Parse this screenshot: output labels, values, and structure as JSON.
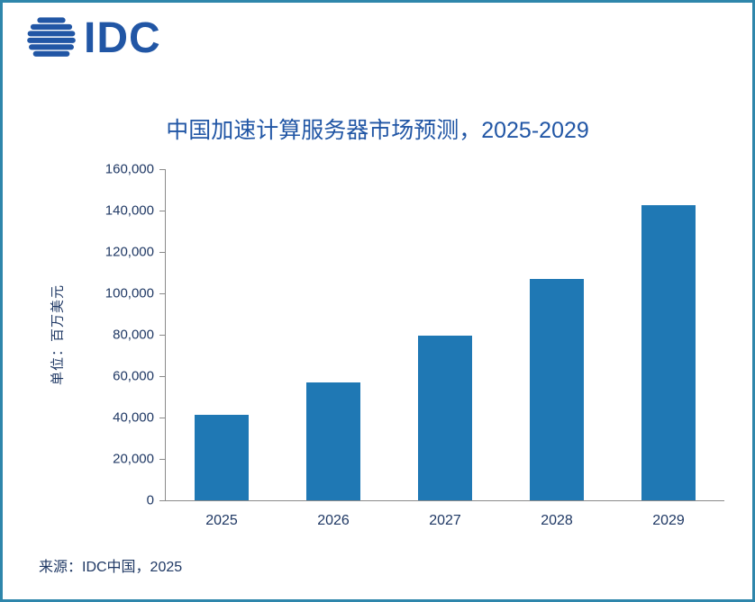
{
  "logo": {
    "text": "IDC"
  },
  "chart_data": {
    "type": "bar",
    "title": "中国加速计算服务器市场预测，2025-2029",
    "categories": [
      "2025",
      "2026",
      "2027",
      "2028",
      "2029"
    ],
    "values": [
      41500,
      57000,
      79500,
      107000,
      142500
    ],
    "xlabel": "",
    "ylabel": "单位：百万美元",
    "ylim": [
      0,
      160000
    ],
    "ytick_step": 20000,
    "ytick_labels": [
      "0",
      "20,000",
      "40,000",
      "60,000",
      "80,000",
      "100,000",
      "120,000",
      "140,000",
      "160,000"
    ],
    "bar_color": "#1F78B4",
    "grid": false,
    "legend": "none"
  },
  "source": "来源：IDC中国，2025",
  "colors": {
    "title_text": "#2156A5",
    "axis_text": "#1F3864",
    "border": "#2E86AB",
    "logo": "#2156A5"
  }
}
